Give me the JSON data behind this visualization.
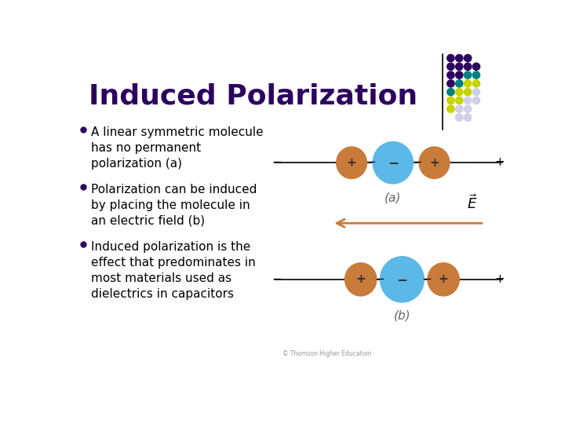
{
  "title": "Induced Polarization",
  "title_color": "#2d0060",
  "background_color": "#ffffff",
  "bullet_points": [
    "A linear symmetric molecule\nhas no permanent\npolarization (a)",
    "Polarization can be induced\nby placing the molecule in\nan electric field (b)",
    "Induced polarization is the\neffect that predominates in\nmost materials used as\ndielectrics in capacitors"
  ],
  "text_color": "#000000",
  "bullet_color": "#2d0060",
  "orange_color": "#c97b3a",
  "blue_color": "#5bb8e8",
  "line_color": "#000000",
  "arrow_color": "#c97b3a",
  "label_color": "#666666",
  "copyright": "© Thomson Higher Education",
  "dot_grid": [
    {
      "col": 0,
      "row": 0,
      "color": "#2d0060"
    },
    {
      "col": 1,
      "row": 0,
      "color": "#2d0060"
    },
    {
      "col": 2,
      "row": 0,
      "color": "#2d0060"
    },
    {
      "col": 0,
      "row": 1,
      "color": "#2d0060"
    },
    {
      "col": 1,
      "row": 1,
      "color": "#2d0060"
    },
    {
      "col": 2,
      "row": 1,
      "color": "#2d0060"
    },
    {
      "col": 3,
      "row": 1,
      "color": "#2d0060"
    },
    {
      "col": 0,
      "row": 2,
      "color": "#2d0060"
    },
    {
      "col": 1,
      "row": 2,
      "color": "#2d0060"
    },
    {
      "col": 2,
      "row": 2,
      "color": "#008080"
    },
    {
      "col": 3,
      "row": 2,
      "color": "#008080"
    },
    {
      "col": 0,
      "row": 3,
      "color": "#2d0060"
    },
    {
      "col": 1,
      "row": 3,
      "color": "#008080"
    },
    {
      "col": 2,
      "row": 3,
      "color": "#c8d400"
    },
    {
      "col": 3,
      "row": 3,
      "color": "#c8d400"
    },
    {
      "col": 0,
      "row": 4,
      "color": "#008080"
    },
    {
      "col": 1,
      "row": 4,
      "color": "#c8d400"
    },
    {
      "col": 2,
      "row": 4,
      "color": "#c8d400"
    },
    {
      "col": 3,
      "row": 4,
      "color": "#d0d0e8"
    },
    {
      "col": 0,
      "row": 5,
      "color": "#c8d400"
    },
    {
      "col": 1,
      "row": 5,
      "color": "#c8d400"
    },
    {
      "col": 2,
      "row": 5,
      "color": "#d0d0e8"
    },
    {
      "col": 3,
      "row": 5,
      "color": "#d0d0e8"
    },
    {
      "col": 0,
      "row": 6,
      "color": "#c8d400"
    },
    {
      "col": 1,
      "row": 6,
      "color": "#d0d0e8"
    },
    {
      "col": 2,
      "row": 6,
      "color": "#d0d0e8"
    },
    {
      "col": 1,
      "row": 7,
      "color": "#d0d0e8"
    },
    {
      "col": 2,
      "row": 7,
      "color": "#d0d0e8"
    }
  ]
}
